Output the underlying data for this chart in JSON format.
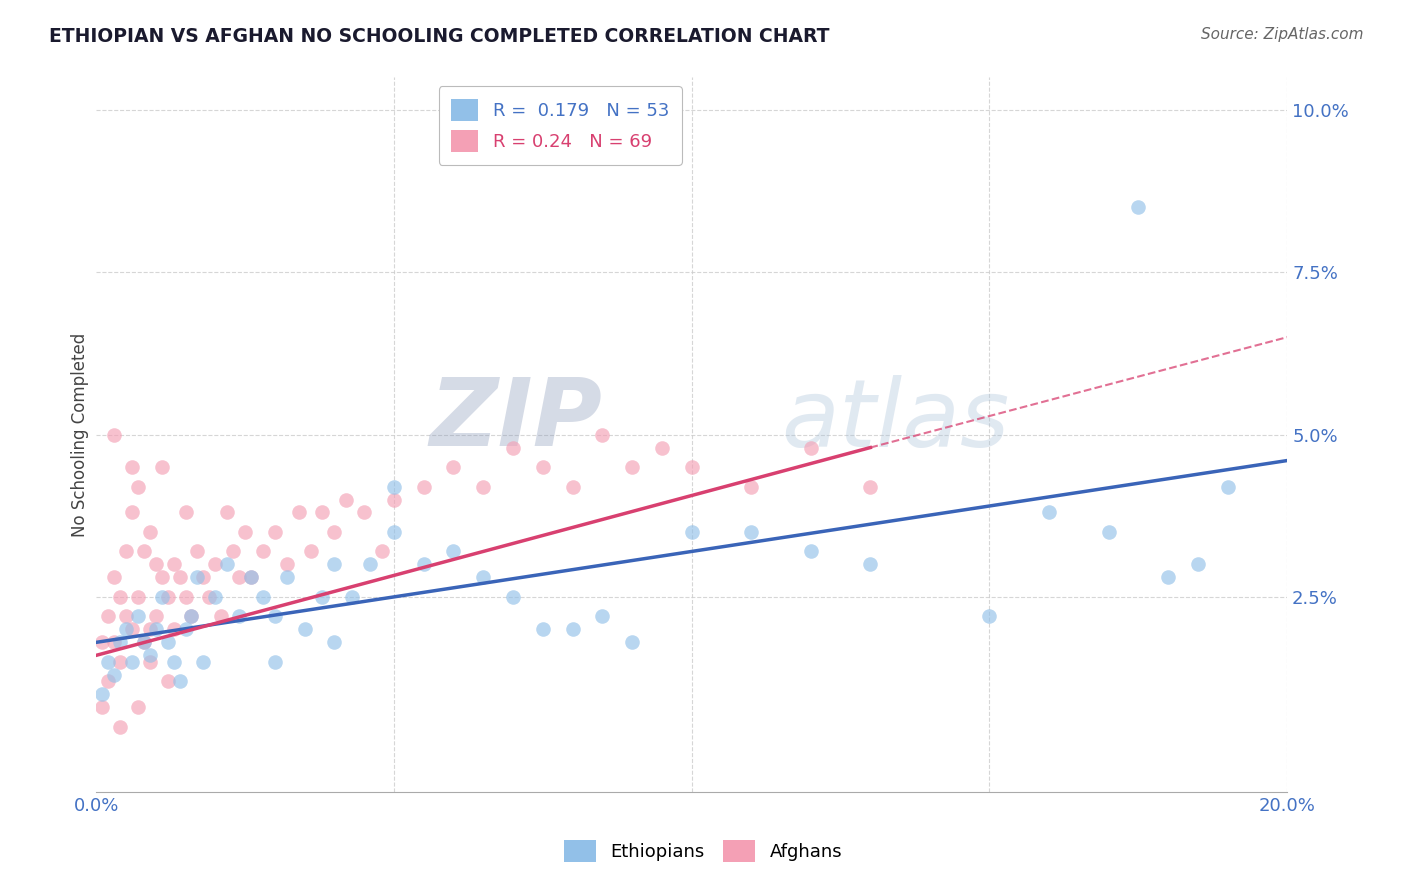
{
  "title": "ETHIOPIAN VS AFGHAN NO SCHOOLING COMPLETED CORRELATION CHART",
  "source": "Source: ZipAtlas.com",
  "ylabel": "No Schooling Completed",
  "xlim": [
    0.0,
    0.2
  ],
  "ylim": [
    -0.005,
    0.105
  ],
  "ethiopian_R": 0.179,
  "ethiopian_N": 53,
  "afghan_R": 0.24,
  "afghan_N": 69,
  "ethiopian_color": "#92C0E8",
  "afghan_color": "#F4A0B5",
  "line_ethiopian_color": "#3A64B8",
  "line_afghan_color": "#D84070",
  "background_color": "#FFFFFF",
  "watermark": "ZIPatlas",
  "watermark_color": "#C8D4E8",
  "grid_color": "#CCCCCC",
  "title_color": "#1a1a2e",
  "axis_color": "#4472C4",
  "ethiopian_x": [
    0.001,
    0.002,
    0.003,
    0.004,
    0.005,
    0.006,
    0.007,
    0.008,
    0.009,
    0.01,
    0.011,
    0.012,
    0.013,
    0.014,
    0.015,
    0.016,
    0.017,
    0.018,
    0.02,
    0.022,
    0.024,
    0.026,
    0.028,
    0.03,
    0.032,
    0.035,
    0.038,
    0.04,
    0.043,
    0.046,
    0.05,
    0.055,
    0.06,
    0.065,
    0.07,
    0.075,
    0.08,
    0.085,
    0.09,
    0.1,
    0.11,
    0.12,
    0.13,
    0.15,
    0.16,
    0.17,
    0.175,
    0.18,
    0.185,
    0.19,
    0.05,
    0.03,
    0.04
  ],
  "ethiopian_y": [
    0.01,
    0.015,
    0.013,
    0.018,
    0.02,
    0.015,
    0.022,
    0.018,
    0.016,
    0.02,
    0.025,
    0.018,
    0.015,
    0.012,
    0.02,
    0.022,
    0.028,
    0.015,
    0.025,
    0.03,
    0.022,
    0.028,
    0.025,
    0.022,
    0.028,
    0.02,
    0.025,
    0.03,
    0.025,
    0.03,
    0.035,
    0.03,
    0.032,
    0.028,
    0.025,
    0.02,
    0.02,
    0.022,
    0.018,
    0.035,
    0.035,
    0.032,
    0.03,
    0.022,
    0.038,
    0.035,
    0.085,
    0.028,
    0.03,
    0.042,
    0.042,
    0.015,
    0.018
  ],
  "afghan_x": [
    0.001,
    0.001,
    0.002,
    0.002,
    0.003,
    0.003,
    0.004,
    0.004,
    0.005,
    0.005,
    0.006,
    0.006,
    0.007,
    0.007,
    0.008,
    0.008,
    0.009,
    0.009,
    0.01,
    0.01,
    0.011,
    0.011,
    0.012,
    0.013,
    0.013,
    0.014,
    0.015,
    0.015,
    0.016,
    0.017,
    0.018,
    0.019,
    0.02,
    0.021,
    0.022,
    0.023,
    0.024,
    0.025,
    0.026,
    0.028,
    0.03,
    0.032,
    0.034,
    0.036,
    0.038,
    0.04,
    0.042,
    0.045,
    0.048,
    0.05,
    0.055,
    0.06,
    0.065,
    0.07,
    0.075,
    0.08,
    0.085,
    0.09,
    0.095,
    0.1,
    0.11,
    0.12,
    0.13,
    0.003,
    0.006,
    0.009,
    0.004,
    0.007,
    0.012
  ],
  "afghan_y": [
    0.008,
    0.018,
    0.012,
    0.022,
    0.018,
    0.028,
    0.015,
    0.025,
    0.022,
    0.032,
    0.02,
    0.038,
    0.025,
    0.042,
    0.018,
    0.032,
    0.02,
    0.035,
    0.022,
    0.03,
    0.028,
    0.045,
    0.025,
    0.03,
    0.02,
    0.028,
    0.025,
    0.038,
    0.022,
    0.032,
    0.028,
    0.025,
    0.03,
    0.022,
    0.038,
    0.032,
    0.028,
    0.035,
    0.028,
    0.032,
    0.035,
    0.03,
    0.038,
    0.032,
    0.038,
    0.035,
    0.04,
    0.038,
    0.032,
    0.04,
    0.042,
    0.045,
    0.042,
    0.048,
    0.045,
    0.042,
    0.05,
    0.045,
    0.048,
    0.045,
    0.042,
    0.048,
    0.042,
    0.05,
    0.045,
    0.015,
    0.005,
    0.008,
    0.012
  ],
  "eth_line_start_x": 0.0,
  "eth_line_end_x": 0.2,
  "eth_line_start_y": 0.018,
  "eth_line_end_y": 0.046,
  "afg_line_start_x": 0.0,
  "afg_line_solid_end_x": 0.13,
  "afg_line_dash_end_x": 0.2,
  "afg_line_start_y": 0.016,
  "afg_line_solid_end_y": 0.048,
  "afg_line_dash_end_y": 0.065
}
